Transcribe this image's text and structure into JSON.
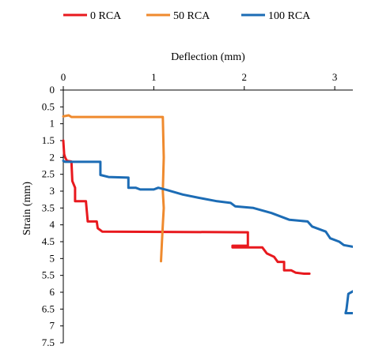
{
  "chart_data": {
    "type": "line",
    "xlabel": "Deflection (mm)",
    "ylabel": "Strain (mm)",
    "xlim": [
      0,
      3.2
    ],
    "ylim": [
      0,
      7.5
    ],
    "y_inverted": true,
    "x_axis_position": "top",
    "grid": false,
    "legend_position": "top",
    "x_ticks": [
      "0",
      "1",
      "2",
      "3"
    ],
    "x_tick_values": [
      0,
      1,
      2,
      3
    ],
    "y_ticks": [
      "0",
      "0.5",
      "1",
      "1.5",
      "2",
      "2.5",
      "3",
      "3.5",
      "4",
      "4.5",
      "5",
      "5.5",
      "6",
      "6.5",
      "7",
      "7.5"
    ],
    "y_tick_values": [
      0,
      0.5,
      1,
      1.5,
      2,
      2.5,
      3,
      3.5,
      4,
      4.5,
      5,
      5.5,
      6,
      6.5,
      7,
      7.5
    ],
    "series": [
      {
        "name": "0 RCA",
        "color": "#e8191e",
        "points": [
          [
            0,
            1.5
          ],
          [
            0.01,
            1.9
          ],
          [
            0.02,
            2.0
          ],
          [
            0.04,
            2.1
          ],
          [
            0.09,
            2.12
          ],
          [
            0.1,
            2.7
          ],
          [
            0.13,
            2.9
          ],
          [
            0.13,
            3.3
          ],
          [
            0.25,
            3.3
          ],
          [
            0.27,
            3.9
          ],
          [
            0.37,
            3.9
          ],
          [
            0.38,
            4.1
          ],
          [
            0.43,
            4.2
          ],
          [
            2.04,
            4.22
          ],
          [
            2.04,
            4.62
          ],
          [
            1.87,
            4.62
          ],
          [
            1.87,
            4.67
          ],
          [
            2.2,
            4.67
          ],
          [
            2.25,
            4.85
          ],
          [
            2.33,
            4.95
          ],
          [
            2.37,
            5.1
          ],
          [
            2.44,
            5.1
          ],
          [
            2.44,
            5.35
          ],
          [
            2.52,
            5.35
          ],
          [
            2.57,
            5.42
          ],
          [
            2.66,
            5.45
          ],
          [
            2.72,
            5.45
          ]
        ]
      },
      {
        "name": "50 RCA",
        "color": "#ef8a2e",
        "points": [
          [
            0,
            0.78
          ],
          [
            0.06,
            0.75
          ],
          [
            0.09,
            0.8
          ],
          [
            1.1,
            0.8
          ],
          [
            1.11,
            2
          ],
          [
            1.1,
            3
          ],
          [
            1.11,
            3.5
          ],
          [
            1.1,
            4
          ],
          [
            1.09,
            4.5
          ],
          [
            1.08,
            5.08
          ]
        ]
      },
      {
        "name": "100 RCA",
        "color": "#1c6cb5",
        "points": [
          [
            0,
            2.1
          ],
          [
            0.02,
            2.13
          ],
          [
            0.41,
            2.13
          ],
          [
            0.41,
            2.52
          ],
          [
            0.5,
            2.58
          ],
          [
            0.72,
            2.6
          ],
          [
            0.72,
            2.9
          ],
          [
            0.8,
            2.9
          ],
          [
            0.85,
            2.95
          ],
          [
            1.0,
            2.95
          ],
          [
            1.05,
            2.9
          ],
          [
            1.15,
            2.97
          ],
          [
            1.32,
            3.1
          ],
          [
            1.5,
            3.2
          ],
          [
            1.7,
            3.3
          ],
          [
            1.85,
            3.35
          ],
          [
            1.9,
            3.45
          ],
          [
            2.1,
            3.5
          ],
          [
            2.3,
            3.65
          ],
          [
            2.5,
            3.85
          ],
          [
            2.7,
            3.9
          ],
          [
            2.75,
            4.05
          ],
          [
            2.9,
            4.2
          ],
          [
            2.95,
            4.4
          ],
          [
            3.05,
            4.5
          ],
          [
            3.1,
            4.6
          ],
          [
            3.2,
            4.65
          ],
          [
            3.25,
            4.7
          ],
          [
            3.25,
            5.9
          ],
          [
            3.15,
            6.05
          ],
          [
            3.13,
            6.5
          ],
          [
            3.12,
            6.62
          ],
          [
            3.4,
            6.62
          ]
        ]
      }
    ]
  }
}
